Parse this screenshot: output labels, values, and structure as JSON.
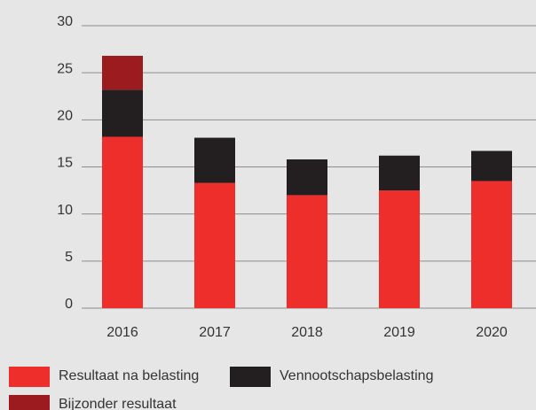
{
  "chart_data": {
    "type": "stacked_bar",
    "categories": [
      "2016",
      "2017",
      "2018",
      "2019",
      "2020"
    ],
    "series": [
      {
        "name": "Resultaat na belasting",
        "color": "#ee2e2b",
        "values": [
          18.2,
          13.3,
          12.0,
          12.5,
          13.5
        ]
      },
      {
        "name": "Vennootschapsbelasting",
        "color": "#231f20",
        "values": [
          5.0,
          4.8,
          3.8,
          3.7,
          3.2
        ]
      },
      {
        "name": "Bijzonder resultaat",
        "color": "#9b1b1f",
        "values": [
          3.6,
          0,
          0,
          0,
          0
        ]
      }
    ],
    "ylim": [
      0,
      30
    ],
    "yticks": [
      0,
      5,
      10,
      15,
      20,
      25,
      30
    ],
    "grid": true,
    "legend": "bottom"
  }
}
